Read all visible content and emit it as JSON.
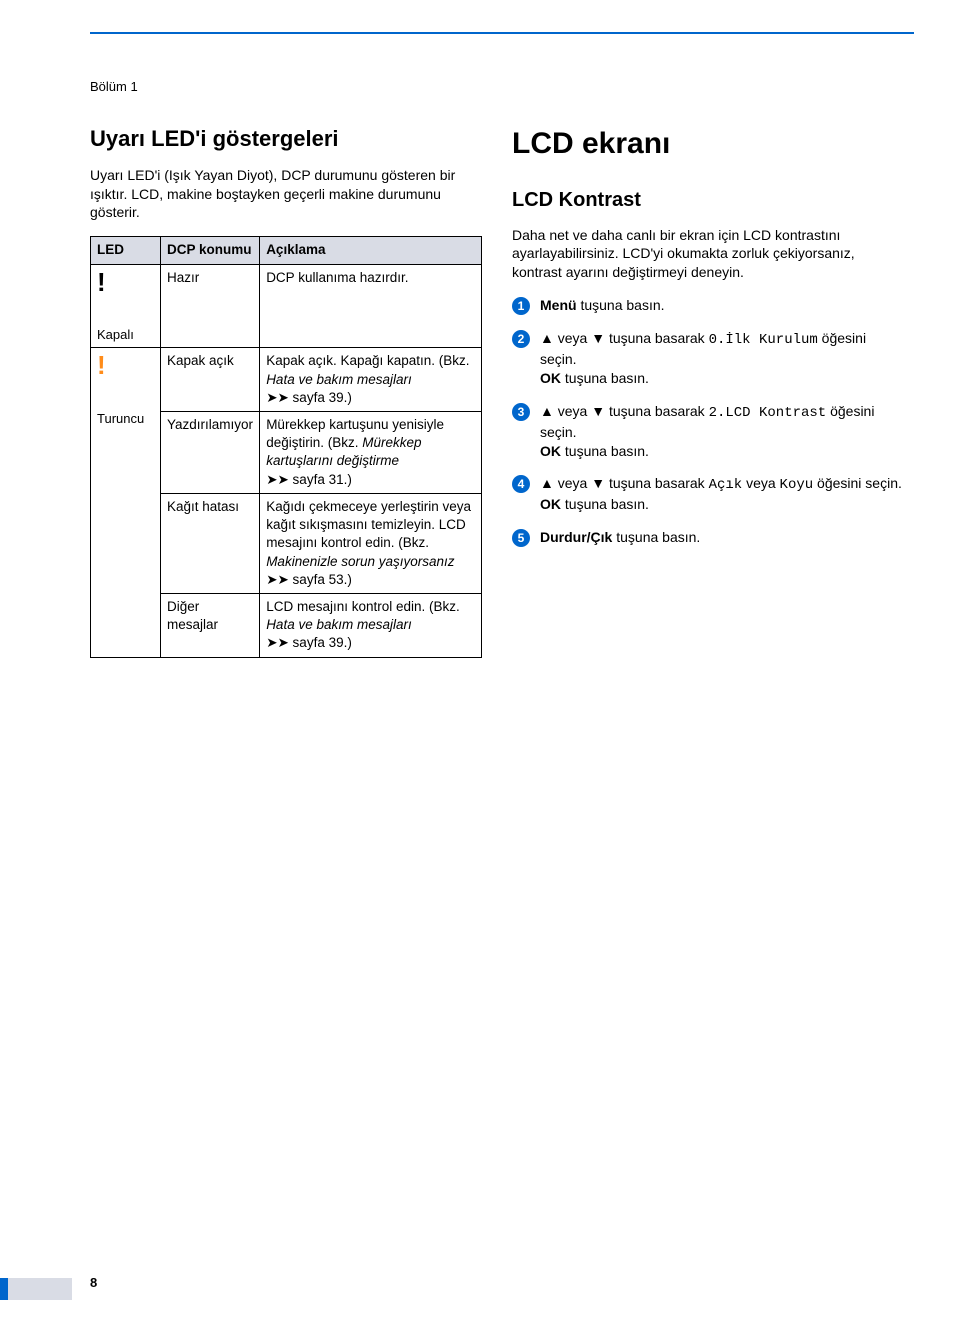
{
  "page": {
    "chapter_label": "Bölüm 1",
    "number": "8"
  },
  "left": {
    "heading": "Uyarı LED'i göstergeleri",
    "intro": "Uyarı LED'i (Işık Yayan Diyot), DCP durumunu gösteren bir ışıktır. LCD, makine boştayken geçerli makine durumunu gösterir.",
    "table": {
      "headers": {
        "c1": "LED",
        "c2": "DCP konumu",
        "c3": "Açıklama"
      },
      "off": {
        "label": "Kapalı",
        "status": "Hazır",
        "desc": "DCP kullanıma hazırdır."
      },
      "orange": {
        "label": "Turuncu",
        "rows": [
          {
            "status": "Kapak açık",
            "desc_plain_a": "Kapak açık. Kapağı kapatın. (Bkz. ",
            "desc_ital": "Hata ve bakım mesajları",
            "desc_ref": " ➤➤ sayfa 39.)"
          },
          {
            "status": "Yazdırılamıyor",
            "desc_plain_a": "Mürekkep kartuşunu yenisiyle değiştirin. (Bkz. ",
            "desc_ital": "Mürekkep kartuşlarını değiştirme",
            "desc_ref": " ➤➤ sayfa 31.)"
          },
          {
            "status": "Kağıt hatası",
            "desc_plain_a": "Kağıdı çekmeceye yerleştirin veya kağıt sıkışmasını temizleyin. LCD mesajını kontrol edin. (Bkz. ",
            "desc_ital": "Makinenizle sorun yaşıyorsanız",
            "desc_ref": " ➤➤ sayfa 53.)"
          },
          {
            "status": "Diğer mesajlar",
            "desc_plain_a": "LCD mesajını kontrol edin. (Bkz. ",
            "desc_ital": "Hata ve bakım mesajları",
            "desc_ref": " ➤➤ sayfa 39.)"
          }
        ]
      }
    }
  },
  "right": {
    "heading": "LCD ekranı",
    "subheading": "LCD Kontrast",
    "intro": "Daha net ve daha canlı bir ekran için LCD kontrastını ayarlayabilirsiniz. LCD'yi okumakta zorluk çekiyorsanız, kontrast ayarını değiştirmeyi deneyin.",
    "steps": {
      "s1_bold": "Menü",
      "s1_rest": " tuşuna basın.",
      "s2_a": "▲ veya ▼ tuşuna basarak ",
      "s2_mono": "0.İlk Kurulum",
      "s2_b": " öğesini seçin.",
      "s2_c_bold": "OK",
      "s2_c_rest": " tuşuna basın.",
      "s3_a": "▲ veya ▼ tuşuna basarak ",
      "s3_mono": "2.LCD Kontrast",
      "s3_b": " öğesini seçin.",
      "s3_c_bold": "OK",
      "s3_c_rest": " tuşuna basın.",
      "s4_a": "▲ veya ▼ tuşuna basarak ",
      "s4_mono1": "Açık",
      "s4_mid": " veya ",
      "s4_mono2": "Koyu",
      "s4_b": " öğesini seçin.",
      "s4_c_bold": "OK",
      "s4_c_rest": " tuşuna basın.",
      "s5_bold": "Durdur/Çık",
      "s5_rest": " tuşuna basın."
    }
  },
  "colors": {
    "accent": "#0066cc",
    "header_bg": "#d9dce5",
    "orange": "#ff8c1a"
  }
}
